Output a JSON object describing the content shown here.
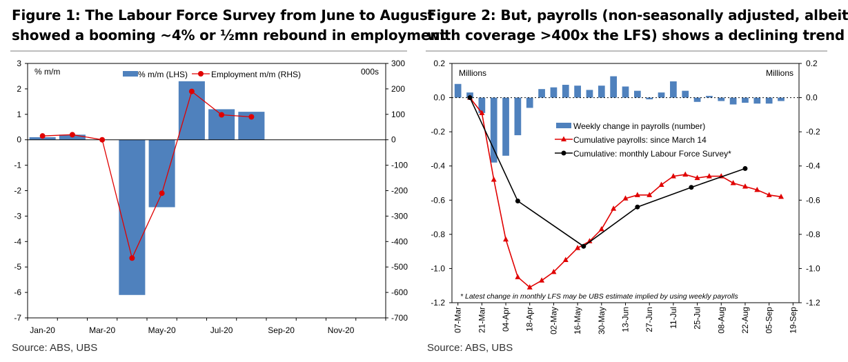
{
  "figure1": {
    "title_line1": "Figure 1: The Labour Force Survey from June to August",
    "title_line2": "showed a booming ~4% or ½mn rebound in employment",
    "source": "Source:  ABS, UBS",
    "chart_data": {
      "type": "bar",
      "left_axis_label": "% m/m",
      "right_axis_label": "000s",
      "left_ylim": [
        -7,
        3
      ],
      "left_ticks": [
        "3",
        "2",
        "1",
        "0",
        "-1",
        "-2",
        "-3",
        "-4",
        "-5",
        "-6",
        "-7"
      ],
      "right_ylim": [
        -700,
        300
      ],
      "right_ticks": [
        "300",
        "200",
        "100",
        "0",
        "-100",
        "-200",
        "-300",
        "-400",
        "-500",
        "-600",
        "-700"
      ],
      "x_tick_labels": [
        "Jan-20",
        "Mar-20",
        "May-20",
        "Jul-20",
        "Sep-20",
        "Nov-20"
      ],
      "months": 12,
      "legend": [
        "% m/m (LHS)",
        "Employment m/m (RHS)"
      ],
      "bar_color": "#4f81bd",
      "line_color": "#e00000",
      "bars_pct": [
        0.1,
        0.2,
        0.0,
        -6.1,
        -2.65,
        2.3,
        1.2,
        1.1
      ],
      "line_000s": [
        15,
        20,
        0,
        -465,
        -210,
        190,
        98,
        90
      ]
    }
  },
  "figure2": {
    "title_line1": "Figure 2: But, payrolls (non-seasonally adjusted, albeit",
    "title_line2": "with coverage >400x the LFS) shows a declining trend",
    "source": "Source:  ABS, UBS",
    "chart_data": {
      "type": "bar",
      "left_axis_label": "Millions",
      "right_axis_label": "Millions",
      "ylim": [
        -1.2,
        0.2
      ],
      "y_ticks": [
        "0.2",
        "0.0",
        "-0.2",
        "-0.4",
        "-0.6",
        "-0.8",
        "-1.0",
        "-1.2"
      ],
      "x_tick_labels": [
        "07-Mar",
        "21-Mar",
        "04-Apr",
        "18-Apr",
        "02-May",
        "16-May",
        "30-May",
        "13-Jun",
        "27-Jun",
        "11-Jul",
        "25-Jul",
        "08-Aug",
        "22-Aug",
        "05-Sep",
        "19-Sep"
      ],
      "weeks": 29,
      "legend": [
        "Weekly change in payrolls (number)",
        "Cumulative payrolls: since March 14",
        "Cumulative: monthly Labour Force Survey*"
      ],
      "note": "* Latest change in monthly LFS may be UBS estimate implied by using weekly payrolls",
      "bar_color": "#4f81bd",
      "red_color": "#e00000",
      "black_color": "#000000",
      "weekly_change": [
        0.08,
        0.03,
        -0.09,
        -0.38,
        -0.34,
        -0.22,
        -0.06,
        0.05,
        0.06,
        0.075,
        0.07,
        0.045,
        0.07,
        0.125,
        0.065,
        0.04,
        -0.01,
        0.03,
        0.095,
        0.04,
        -0.025,
        0.01,
        -0.02,
        -0.04,
        -0.03,
        -0.035,
        -0.035,
        -0.02,
        null
      ],
      "cumulative_payrolls": [
        null,
        0.0,
        -0.09,
        -0.48,
        -0.83,
        -1.05,
        -1.11,
        -1.07,
        -1.02,
        -0.95,
        -0.88,
        -0.84,
        -0.77,
        -0.65,
        -0.59,
        -0.57,
        -0.57,
        -0.51,
        -0.46,
        -0.45,
        -0.47,
        -0.46,
        -0.46,
        -0.5,
        -0.52,
        -0.54,
        -0.57,
        -0.58,
        null
      ],
      "lfs_cumulative": [
        {
          "week": 1,
          "value": 0.0
        },
        {
          "week": 5,
          "value": -0.605
        },
        {
          "week": 10.5,
          "value": -0.87
        },
        {
          "week": 15,
          "value": -0.64
        },
        {
          "week": 19.5,
          "value": -0.525
        },
        {
          "week": 24,
          "value": -0.415
        }
      ]
    }
  }
}
